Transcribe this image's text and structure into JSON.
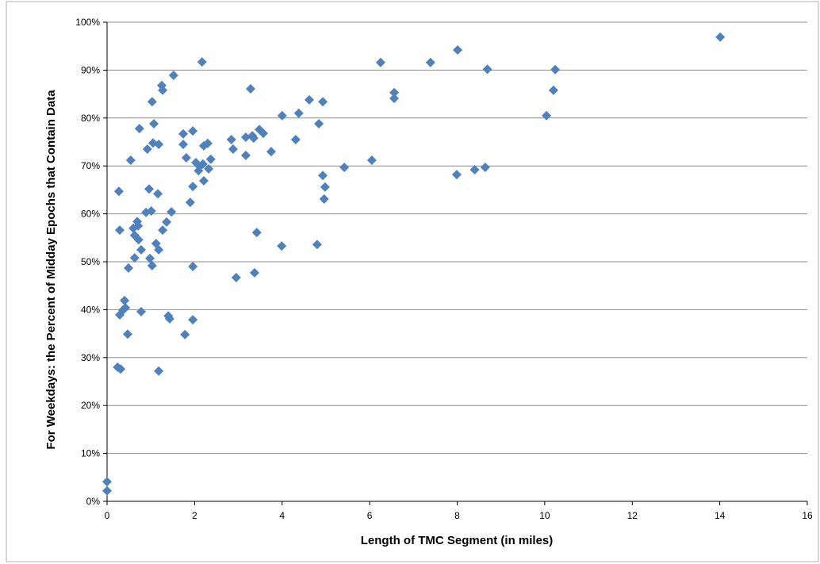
{
  "chart_data": {
    "type": "scatter",
    "x_label": "Length of TMC Segment (in miles)",
    "y_label": "For  Weekdays: the Percent of Midday Epochs that Contain Data",
    "color": "#4f81bd",
    "grid": true,
    "xlim": [
      0,
      16
    ],
    "xticks": [
      0,
      2,
      4,
      6,
      8,
      10,
      12,
      14,
      16
    ],
    "ylim": [
      0,
      100
    ],
    "yticks": [
      {
        "value": 0,
        "label": "0%"
      },
      {
        "value": 10,
        "label": "10%"
      },
      {
        "value": 20,
        "label": "20%"
      },
      {
        "value": 30,
        "label": "30%"
      },
      {
        "value": 40,
        "label": "40%"
      },
      {
        "value": 50,
        "label": "50%"
      },
      {
        "value": 60,
        "label": "60%"
      },
      {
        "value": 70,
        "label": "70%"
      },
      {
        "value": 80,
        "label": "80%"
      },
      {
        "value": 90,
        "label": "90%"
      },
      {
        "value": 100,
        "label": "100%"
      }
    ],
    "x": [
      0,
      0,
      0.27,
      0.29,
      0.24,
      0.31,
      0.29,
      0.36,
      0.42,
      0.4,
      0.49,
      0.47,
      0.54,
      0.6,
      0.63,
      0.69,
      0.71,
      0.72,
      0.63,
      0.74,
      0.78,
      0.78,
      0.89,
      0.92,
      0.96,
      0.98,
      1.01,
      1.03,
      1.05,
      1.07,
      1.03,
      1.12,
      1.18,
      1.16,
      1.18,
      1.18,
      1.25,
      1.27,
      1.27,
      1.36,
      1.4,
      1.43,
      1.47,
      1.52,
      1.74,
      1.74,
      1.78,
      1.81,
      1.9,
      1.96,
      1.96,
      1.96,
      1.96,
      2.03,
      2.09,
      2.12,
      2.19,
      2.17,
      2.21,
      2.21,
      2.3,
      2.32,
      2.37,
      2.84,
      2.88,
      2.95,
      3.17,
      3.17,
      3.28,
      3.32,
      3.35,
      3.37,
      3.42,
      3.48,
      3.57,
      3.75,
      4.0,
      3.99,
      4.31,
      4.38,
      4.62,
      4.8,
      4.84,
      4.93,
      4.93,
      4.98,
      4.96,
      5.42,
      6.05,
      6.25,
      6.56,
      6.56,
      7.39,
      8.01,
      7.99,
      8.4,
      8.64,
      8.69,
      10.04,
      10.2,
      10.24,
      14.01
    ],
    "y": [
      4.1,
      2.2,
      64.7,
      56.6,
      28.0,
      27.6,
      38.9,
      39.9,
      40.4,
      41.9,
      48.7,
      34.9,
      71.2,
      57.0,
      55.5,
      58.4,
      57.5,
      54.6,
      50.8,
      77.8,
      52.5,
      39.6,
      60.3,
      73.5,
      65.2,
      50.7,
      60.6,
      83.4,
      74.8,
      78.8,
      49.2,
      53.8,
      52.5,
      64.2,
      74.5,
      27.2,
      86.8,
      85.8,
      56.6,
      58.3,
      38.7,
      38.1,
      60.4,
      88.9,
      76.7,
      74.5,
      34.8,
      71.7,
      62.4,
      77.3,
      65.7,
      49.0,
      37.9,
      70.7,
      69.0,
      69.9,
      70.4,
      91.7,
      74.2,
      66.9,
      74.7,
      69.4,
      71.4,
      75.5,
      73.5,
      46.7,
      72.2,
      76.0,
      86.1,
      76.3,
      75.8,
      47.7,
      56.1,
      77.6,
      76.8,
      73.0,
      80.5,
      53.3,
      75.5,
      81.0,
      83.8,
      53.6,
      78.8,
      83.4,
      68.0,
      65.6,
      63.1,
      69.7,
      71.2,
      91.6,
      85.3,
      84.1,
      91.6,
      94.2,
      68.2,
      69.2,
      69.7,
      90.2,
      80.5,
      85.8,
      90.1,
      96.9
    ]
  }
}
